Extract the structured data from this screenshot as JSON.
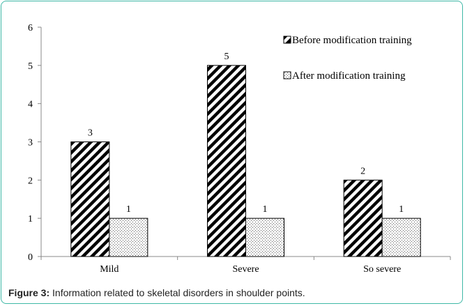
{
  "chart_data": {
    "type": "bar",
    "categories": [
      "Mild",
      "Severe",
      "So severe"
    ],
    "series": [
      {
        "name": "Before modification training",
        "values": [
          3,
          5,
          2
        ],
        "pattern": "diagonal-hatch"
      },
      {
        "name": "After modification training",
        "values": [
          1,
          1,
          1
        ],
        "pattern": "dots"
      }
    ],
    "y_ticks": [
      "0",
      "1",
      "2",
      "3",
      "4",
      "5",
      "6"
    ],
    "ylim": [
      0,
      6
    ],
    "grid": false,
    "legend_position": "top-right",
    "data_labels": true
  },
  "caption": {
    "label": "Figure 3:",
    "text": " Information related to skeletal disorders in shoulder points."
  },
  "colors": {
    "border": "#3fb8a6",
    "axis": "#888888",
    "bar_stroke": "#000000"
  }
}
